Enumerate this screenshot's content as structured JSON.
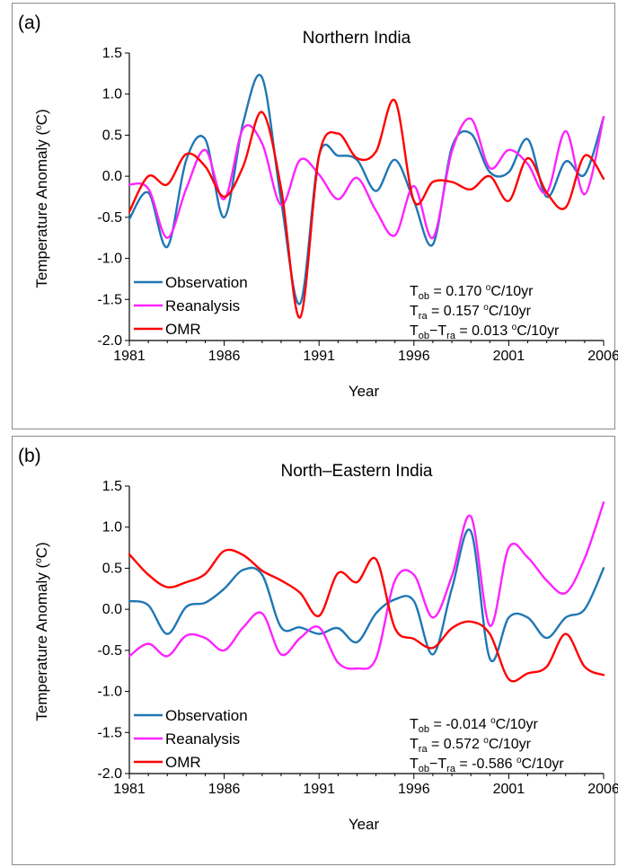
{
  "chart_data": [
    {
      "type": "line",
      "panel_label": "(a)",
      "title": "Northern India",
      "xlabel": "Year",
      "ylabel": "Temperature Anomaly (",
      "ylabel_sup": "o",
      "ylabel_end": "C)",
      "xlim": [
        1981,
        2006
      ],
      "ylim": [
        -2.0,
        1.5
      ],
      "x_ticks": [
        1981,
        1986,
        1991,
        1996,
        2001,
        2006
      ],
      "y_ticks": [
        -2.0,
        -1.5,
        -1.0,
        -0.5,
        0.0,
        0.5,
        1.0,
        1.5
      ],
      "y_tick_labels": [
        "-2.0",
        "-1.5",
        "-1.0",
        "-0.5",
        "0.0",
        "0.5",
        "1.0",
        "1.5"
      ],
      "grid": false,
      "legend_position": "bottom-left",
      "x": [
        1981,
        1982,
        1983,
        1984,
        1985,
        1986,
        1987,
        1988,
        1989,
        1990,
        1991,
        1992,
        1993,
        1994,
        1995,
        1996,
        1997,
        1998,
        1999,
        2000,
        2001,
        2002,
        2003,
        2004,
        2005,
        2006
      ],
      "series": [
        {
          "name": "Observation",
          "color": "#1f77b4",
          "values": [
            -0.52,
            -0.2,
            -0.86,
            0.2,
            0.45,
            -0.5,
            0.65,
            1.2,
            -0.3,
            -1.55,
            0.25,
            0.25,
            0.2,
            -0.18,
            0.2,
            -0.3,
            -0.83,
            0.35,
            0.52,
            0.05,
            0.05,
            0.45,
            -0.25,
            0.18,
            0.02,
            0.72
          ]
        },
        {
          "name": "Reanalysis",
          "color": "#ff22ff",
          "values": [
            -0.1,
            -0.15,
            -0.75,
            -0.15,
            0.32,
            -0.28,
            0.58,
            0.4,
            -0.35,
            0.2,
            0.02,
            -0.28,
            -0.02,
            -0.42,
            -0.72,
            -0.12,
            -0.75,
            0.3,
            0.7,
            0.1,
            0.32,
            0.15,
            -0.2,
            0.55,
            -0.22,
            0.72
          ]
        },
        {
          "name": "OMR",
          "color": "#ff0000",
          "values": [
            -0.43,
            0.0,
            -0.1,
            0.27,
            0.12,
            -0.25,
            0.12,
            0.78,
            -0.15,
            -1.72,
            0.25,
            0.52,
            0.22,
            0.3,
            0.92,
            -0.3,
            -0.07,
            -0.07,
            -0.16,
            0.0,
            -0.3,
            0.22,
            -0.2,
            -0.38,
            0.25,
            -0.03
          ]
        }
      ],
      "annotations": [
        {
          "pre": "T",
          "sub": "ob",
          "post": " = 0.170 ",
          "sup": "o",
          "unit": "C/10yr"
        },
        {
          "pre": "T",
          "sub": "ra",
          "post": " = 0.157 ",
          "sup": "o",
          "unit": "C/10yr"
        },
        {
          "pre": "T",
          "sub": "ob",
          "mid": "−T",
          "sub2": "ra",
          "post": " = 0.013 ",
          "sup": "o",
          "unit": "C/10yr"
        }
      ]
    },
    {
      "type": "line",
      "panel_label": "(b)",
      "title": "North–Eastern India",
      "xlabel": "Year",
      "ylabel": "Temperature Anomaly (",
      "ylabel_sup": "o",
      "ylabel_end": "C)",
      "xlim": [
        1981,
        2006
      ],
      "ylim": [
        -2.0,
        1.5
      ],
      "x_ticks": [
        1981,
        1986,
        1991,
        1996,
        2001,
        2006
      ],
      "y_ticks": [
        -2.0,
        -1.5,
        -1.0,
        -0.5,
        0.0,
        0.5,
        1.0,
        1.5
      ],
      "y_tick_labels": [
        "-2.0",
        "-1.5",
        "-1.0",
        "-0.5",
        "0.0",
        "0.5",
        "1.0",
        "1.5"
      ],
      "grid": false,
      "legend_position": "bottom-left",
      "x": [
        1981,
        1982,
        1983,
        1984,
        1985,
        1986,
        1987,
        1988,
        1989,
        1990,
        1991,
        1992,
        1993,
        1994,
        1995,
        1996,
        1997,
        1998,
        1999,
        2000,
        2001,
        2002,
        2003,
        2004,
        2005,
        2006
      ],
      "series": [
        {
          "name": "Observation",
          "color": "#1f77b4",
          "values": [
            0.1,
            0.05,
            -0.3,
            0.03,
            0.08,
            0.25,
            0.48,
            0.42,
            -0.22,
            -0.22,
            -0.3,
            -0.23,
            -0.4,
            -0.05,
            0.12,
            0.1,
            -0.55,
            0.25,
            0.95,
            -0.6,
            -0.1,
            -0.1,
            -0.35,
            -0.1,
            0.0,
            0.5
          ]
        },
        {
          "name": "Reanalysis",
          "color": "#ff22ff",
          "values": [
            -0.57,
            -0.42,
            -0.57,
            -0.32,
            -0.35,
            -0.5,
            -0.22,
            -0.05,
            -0.55,
            -0.35,
            -0.22,
            -0.65,
            -0.72,
            -0.6,
            0.35,
            0.42,
            -0.1,
            0.4,
            1.13,
            -0.2,
            0.75,
            0.63,
            0.35,
            0.2,
            0.62,
            1.3
          ]
        },
        {
          "name": "OMR",
          "color": "#ff0000",
          "values": [
            0.67,
            0.42,
            0.27,
            0.33,
            0.43,
            0.71,
            0.66,
            0.47,
            0.35,
            0.2,
            -0.08,
            0.44,
            0.33,
            0.61,
            -0.23,
            -0.36,
            -0.47,
            -0.23,
            -0.15,
            -0.3,
            -0.85,
            -0.78,
            -0.7,
            -0.3,
            -0.7,
            -0.8
          ]
        }
      ],
      "annotations": [
        {
          "pre": "T",
          "sub": "ob",
          "post": " = -0.014 ",
          "sup": "o",
          "unit": "C/10yr"
        },
        {
          "pre": "T",
          "sub": "ra",
          "post": " = 0.572 ",
          "sup": "o",
          "unit": "C/10yr"
        },
        {
          "pre": "T",
          "sub": "ob",
          "mid": "−T",
          "sub2": "ra",
          "post": " = -0.586 ",
          "sup": "o",
          "unit": "C/10yr"
        }
      ]
    }
  ]
}
